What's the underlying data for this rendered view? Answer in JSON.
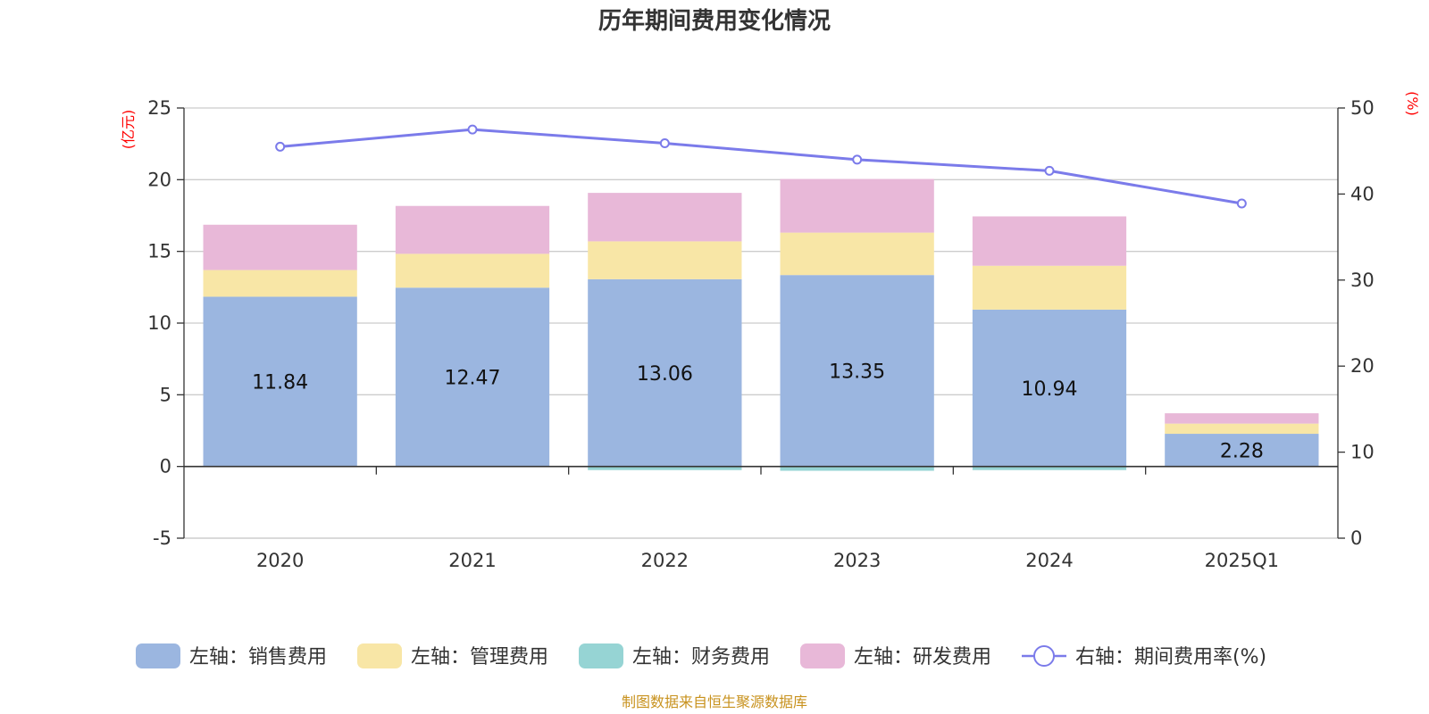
{
  "chart_data": {
    "type": "bar",
    "title": "历年期间费用变化情况",
    "categories": [
      "2020",
      "2021",
      "2022",
      "2023",
      "2024",
      "2025Q1"
    ],
    "left_axis": {
      "unit": "(亿元)",
      "ylim": [
        -5,
        25
      ],
      "ticks": [
        "-5",
        "0",
        "5",
        "10",
        "15",
        "20",
        "25"
      ]
    },
    "right_axis": {
      "unit": "(%)",
      "ylim": [
        0,
        50
      ],
      "ticks": [
        "0",
        "10",
        "20",
        "30",
        "40",
        "50"
      ]
    },
    "series": [
      {
        "name": "左轴：销售费用",
        "axis": "left",
        "stack": true,
        "color": "#9bb6e0",
        "values": [
          11.84,
          12.47,
          13.06,
          13.35,
          10.94,
          2.28
        ],
        "show_labels": true
      },
      {
        "name": "左轴：管理费用",
        "axis": "left",
        "stack": true,
        "color": "#f8e6a6",
        "values": [
          1.86,
          2.36,
          2.64,
          2.96,
          3.06,
          0.71
        ]
      },
      {
        "name": "左轴：财务费用",
        "axis": "left",
        "stack": true,
        "color": "#96d4d4",
        "values": [
          -0.02,
          -0.05,
          -0.25,
          -0.3,
          -0.25,
          -0.02
        ]
      },
      {
        "name": "左轴：研发费用",
        "axis": "left",
        "stack": true,
        "color": "#e8b8d8",
        "values": [
          3.16,
          3.34,
          3.38,
          3.74,
          3.44,
          0.72
        ]
      },
      {
        "name": "右轴：期间费用率(%)",
        "axis": "right",
        "type": "line",
        "color": "#7b7bea",
        "values": [
          45.5,
          47.5,
          45.9,
          44.0,
          42.7,
          38.9
        ]
      }
    ],
    "legend_position": "bottom",
    "grid": true
  },
  "footer": {
    "source": "制图数据来自恒生聚源数据库"
  }
}
